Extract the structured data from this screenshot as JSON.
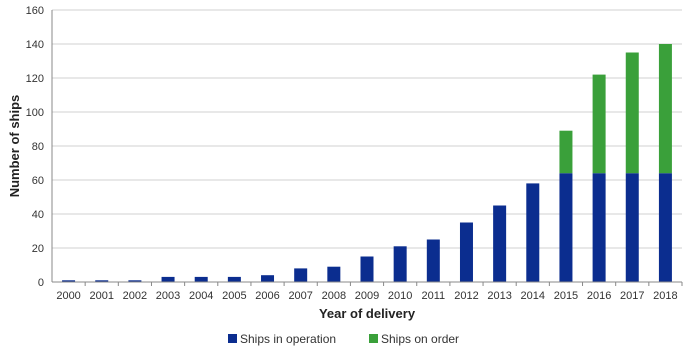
{
  "chart_data": {
    "type": "bar",
    "stacked": true,
    "categories": [
      "2000",
      "2001",
      "2002",
      "2003",
      "2004",
      "2005",
      "2006",
      "2007",
      "2008",
      "2009",
      "2010",
      "2011",
      "2012",
      "2013",
      "2014",
      "2015",
      "2016",
      "2017",
      "2018"
    ],
    "series": [
      {
        "name": "Ships in operation",
        "color": "#0b2d8f",
        "values": [
          1,
          1,
          1,
          3,
          3,
          3,
          4,
          8,
          9,
          15,
          21,
          25,
          35,
          45,
          58,
          64,
          64,
          64,
          64
        ]
      },
      {
        "name": "Ships on order",
        "color": "#3aa03a",
        "values": [
          0,
          0,
          0,
          0,
          0,
          0,
          0,
          0,
          0,
          0,
          0,
          0,
          0,
          0,
          0,
          25,
          58,
          71,
          76
        ]
      }
    ],
    "xlabel": "Year of delivery",
    "ylabel": "Number of ships",
    "ylim": [
      0,
      160
    ],
    "yticks": [
      0,
      20,
      40,
      60,
      80,
      100,
      120,
      140,
      160
    ],
    "grid": true,
    "legend": "bottom"
  }
}
